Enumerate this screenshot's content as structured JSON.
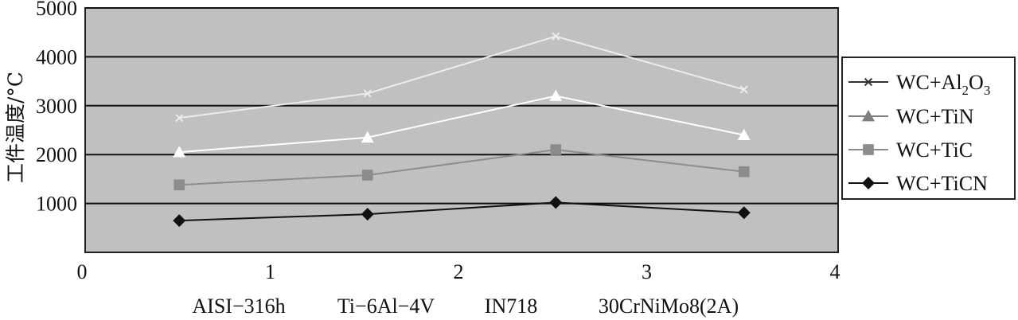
{
  "chart_data": {
    "type": "line",
    "ylabel": "工件温度/°C",
    "xlim": [
      0,
      4
    ],
    "ylim": [
      0,
      5000
    ],
    "x_ticks": [
      0,
      1,
      2,
      3,
      4
    ],
    "y_ticks": [
      1000,
      2000,
      3000,
      4000,
      5000
    ],
    "categories": [
      "AISI−316h",
      "Ti−6Al−4V",
      "IN718",
      "30CrNiMo8(2A)"
    ],
    "x": [
      0.5,
      1.5,
      2.5,
      3.5
    ],
    "plot_background": "#c0c0c0",
    "grid": "horizontal",
    "legend_position": "right",
    "series": [
      {
        "name": "WC+Al2O3",
        "name_base": "WC+Al",
        "name_sub1": "2",
        "name_mid": "O",
        "name_sub2": "3",
        "marker": "x",
        "color": "#ececec",
        "values": [
          2750,
          3250,
          4420,
          3330
        ]
      },
      {
        "name": "WC+TiN",
        "marker": "triangle",
        "color": "#ffffff",
        "legend_color": "#7f7f7f",
        "values": [
          2050,
          2350,
          3200,
          2400
        ]
      },
      {
        "name": "WC+TiC",
        "marker": "square",
        "color": "#8c8c8c",
        "values": [
          1380,
          1580,
          2100,
          1650
        ]
      },
      {
        "name": "WC+TiCN",
        "marker": "diamond",
        "color": "#111111",
        "values": [
          650,
          780,
          1020,
          810
        ]
      }
    ]
  }
}
